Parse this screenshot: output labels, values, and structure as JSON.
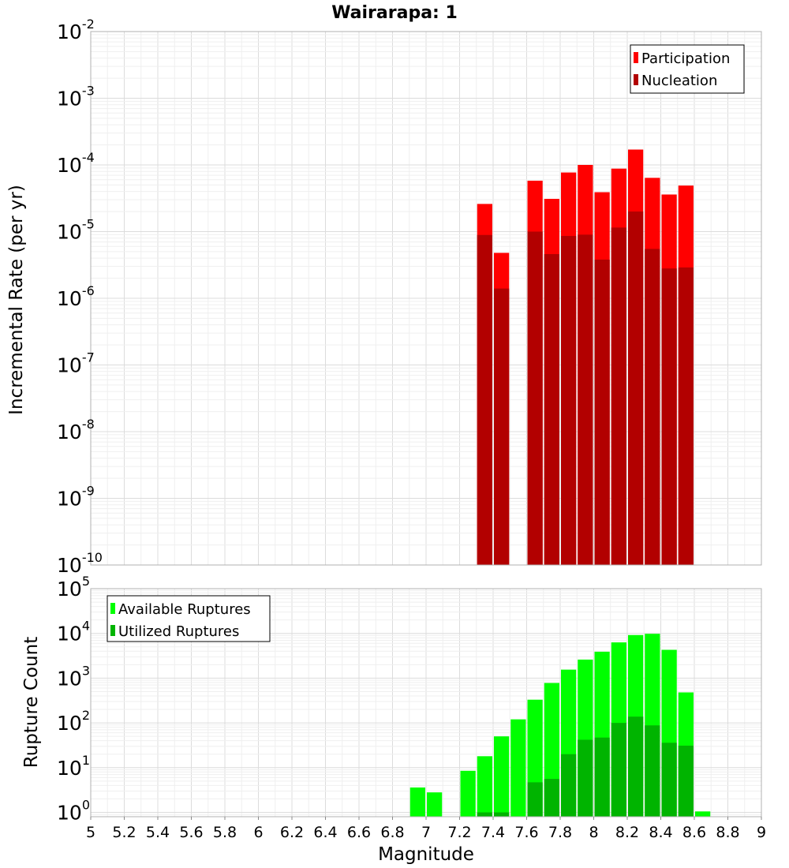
{
  "colors": {
    "participation": "#ff0000",
    "nucleation": "#b20000",
    "available": "#00ff00",
    "utilized": "#00b400"
  },
  "chart_data": [
    {
      "type": "bar",
      "title": "Wairarapa: 1",
      "xlabel": "Magnitude",
      "ylabel": "Incremental Rate (per yr)",
      "y_scale": "log",
      "xlim": [
        5,
        9
      ],
      "ylim": [
        1e-10,
        0.01
      ],
      "bin_width": 0.1,
      "y_ticks": [
        {
          "base": "10",
          "exp": "-10"
        },
        {
          "base": "10",
          "exp": "-9"
        },
        {
          "base": "10",
          "exp": "-8"
        },
        {
          "base": "10",
          "exp": "-7"
        },
        {
          "base": "10",
          "exp": "-6"
        },
        {
          "base": "10",
          "exp": "-5"
        },
        {
          "base": "10",
          "exp": "-4"
        },
        {
          "base": "10",
          "exp": "-3"
        },
        {
          "base": "10",
          "exp": "-2"
        }
      ],
      "legend_position": "top-right",
      "x": [
        7.35,
        7.45,
        7.65,
        7.75,
        7.85,
        7.95,
        8.05,
        8.15,
        8.25,
        8.35,
        8.45,
        8.55
      ],
      "series": [
        {
          "name": "Participation",
          "color_key": "participation",
          "values": [
            2.6e-05,
            4.8e-06,
            5.8e-05,
            3.1e-05,
            7.7e-05,
            0.0001,
            3.9e-05,
            8.8e-05,
            0.00017,
            6.4e-05,
            3.6e-05,
            4.9e-05
          ]
        },
        {
          "name": "Nucleation",
          "color_key": "nucleation",
          "values": [
            8.9e-06,
            1.4e-06,
            1e-05,
            4.6e-06,
            8.6e-06,
            9e-06,
            3.8e-06,
            1.15e-05,
            2e-05,
            5.5e-06,
            2.8e-06,
            2.9e-06
          ]
        }
      ]
    },
    {
      "type": "bar",
      "xlabel": "Magnitude",
      "ylabel": "Rupture Count",
      "y_scale": "log",
      "xlim": [
        5,
        9
      ],
      "ylim": [
        0.8,
        100000.0
      ],
      "bin_width": 0.1,
      "x_ticks": [
        "5",
        "5.2",
        "5.4",
        "5.6",
        "5.8",
        "6",
        "6.2",
        "6.4",
        "6.6",
        "6.8",
        "7",
        "7.2",
        "7.4",
        "7.6",
        "7.8",
        "8",
        "8.2",
        "8.4",
        "8.6",
        "8.8",
        "9"
      ],
      "y_ticks": [
        {
          "base": "10",
          "exp": "0"
        },
        {
          "base": "10",
          "exp": "1"
        },
        {
          "base": "10",
          "exp": "2"
        },
        {
          "base": "10",
          "exp": "3"
        },
        {
          "base": "10",
          "exp": "4"
        },
        {
          "base": "10",
          "exp": "5"
        }
      ],
      "legend_position": "top-left",
      "x": [
        6.95,
        7.05,
        7.25,
        7.35,
        7.45,
        7.55,
        7.65,
        7.75,
        7.85,
        7.95,
        8.05,
        8.15,
        8.25,
        8.35,
        8.45,
        8.55,
        8.65
      ],
      "series": [
        {
          "name": "Available Ruptures",
          "color_key": "available",
          "values": [
            3.6,
            2.8,
            8.5,
            18,
            50,
            120,
            330,
            780,
            1550,
            2600,
            3900,
            6300,
            9200,
            9800,
            4300,
            480,
            1.05
          ]
        },
        {
          "name": "Utilized Ruptures",
          "color_key": "utilized",
          "values": [
            0,
            0,
            0,
            1.0,
            1.0,
            0,
            4.7,
            5.6,
            20,
            42,
            47,
            100,
            138,
            88,
            36,
            31,
            0
          ]
        }
      ]
    }
  ]
}
